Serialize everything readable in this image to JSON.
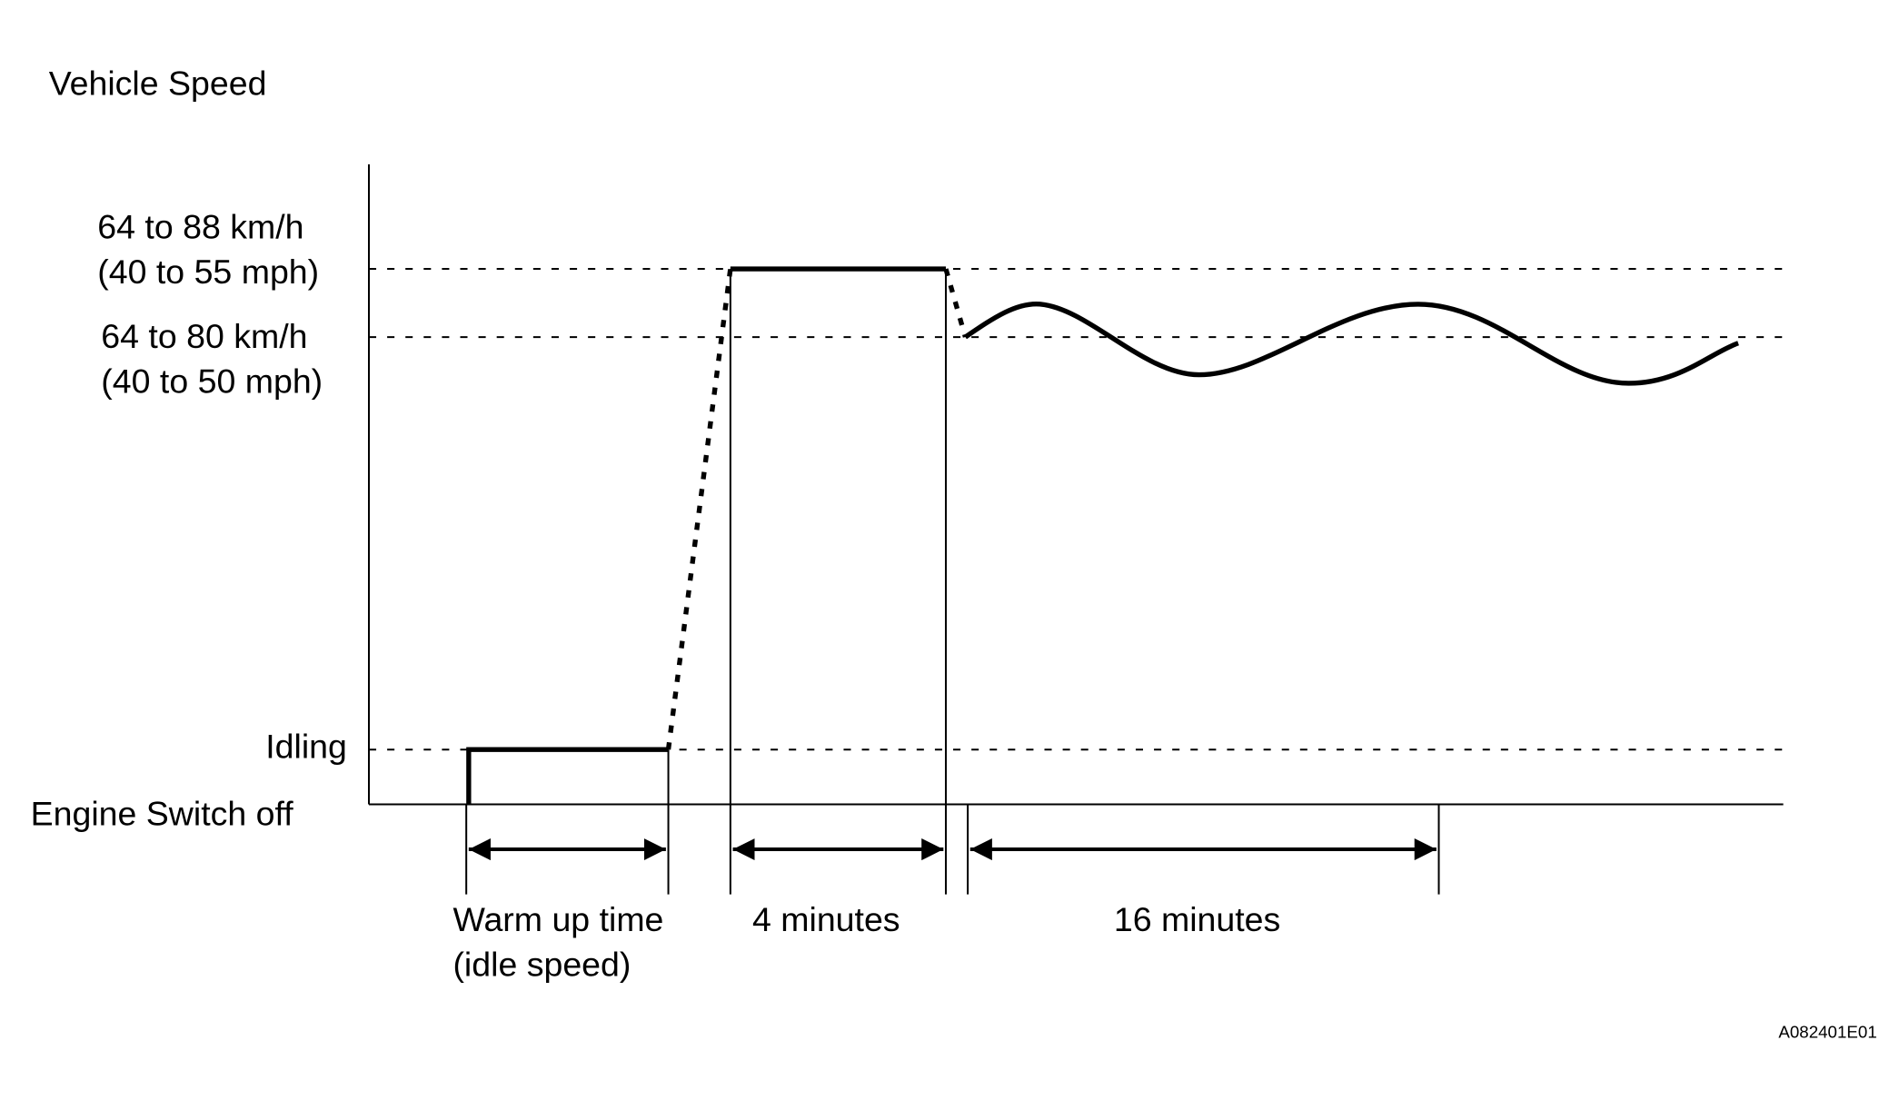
{
  "y_axis_title": "Vehicle Speed",
  "levels": [
    {
      "lines": [
        "64 to 88 km/h",
        "(40 to 55 mph)"
      ]
    },
    {
      "lines": [
        "64 to 80 km/h",
        "(40 to 50 mph)"
      ]
    },
    {
      "lines": [
        "Idling"
      ]
    },
    {
      "lines": [
        "Engine Switch off"
      ]
    }
  ],
  "intervals": [
    {
      "lines": [
        "Warm up time",
        "(idle speed)"
      ]
    },
    {
      "lines": [
        "4 minutes"
      ]
    },
    {
      "lines": [
        "16 minutes"
      ]
    }
  ],
  "figure_code": "A082401E01"
}
